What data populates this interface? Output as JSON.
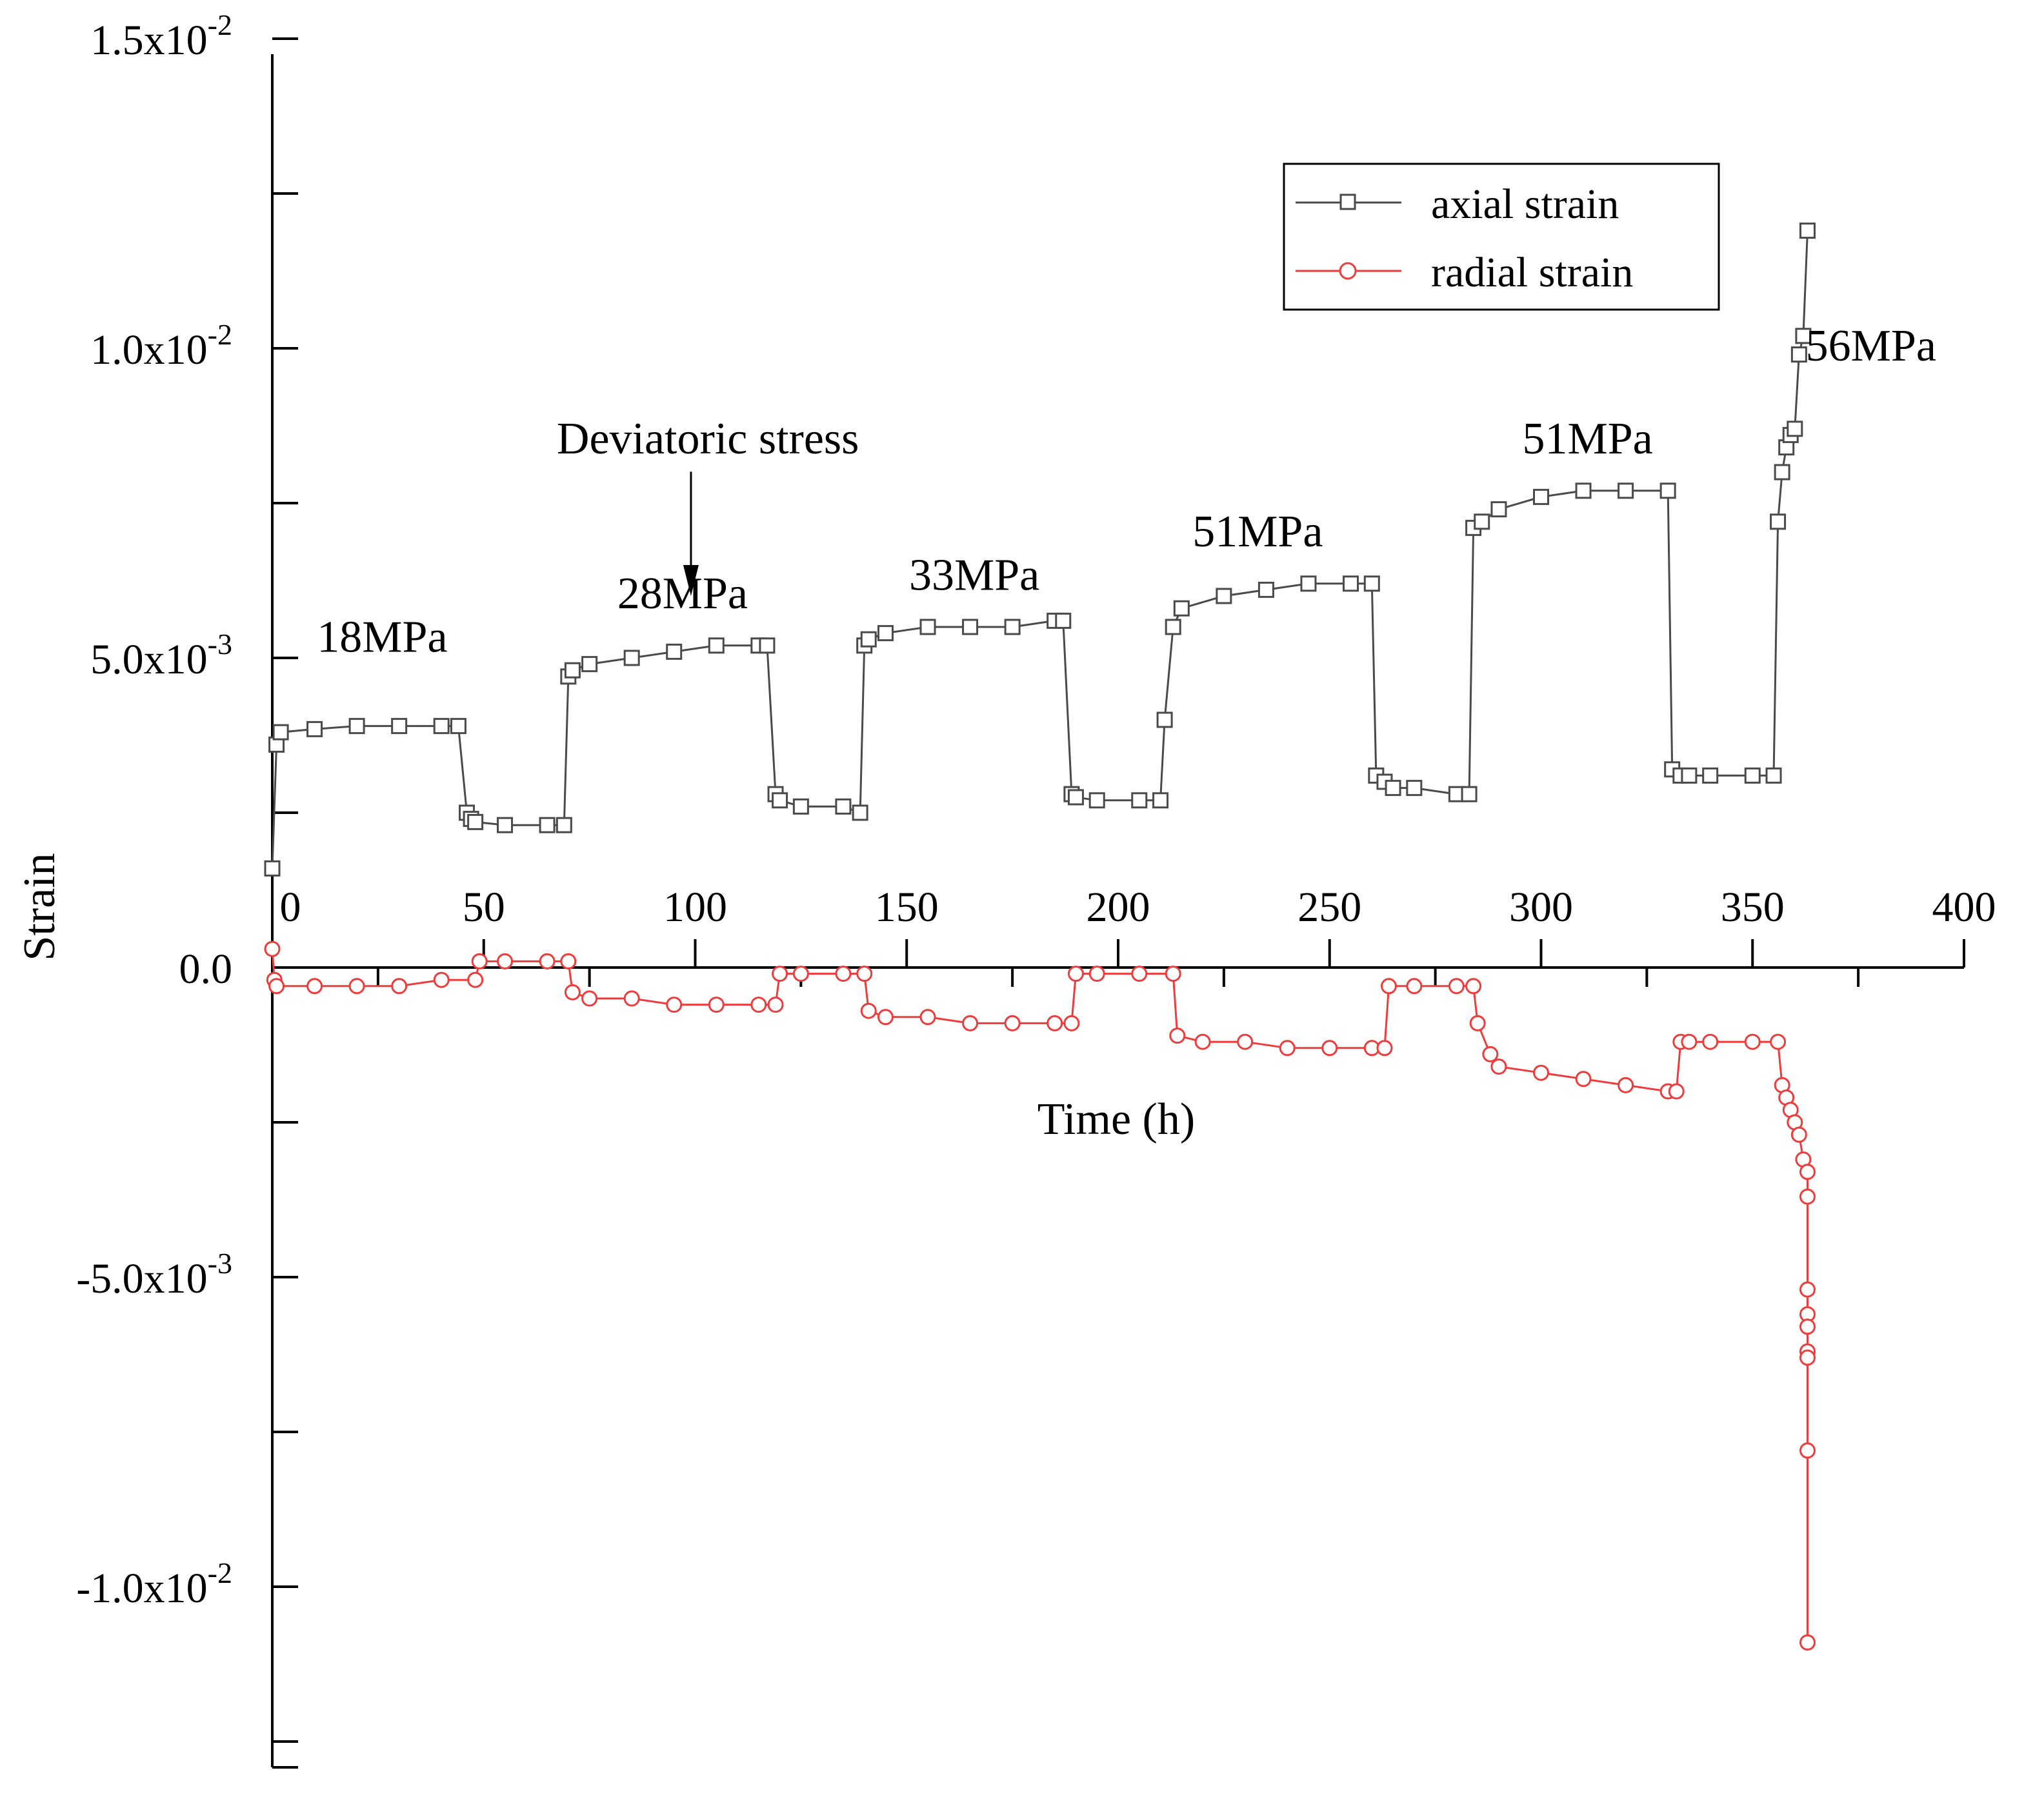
{
  "chart_data": {
    "type": "scatter",
    "title": "",
    "xlabel": "Time (h)",
    "ylabel": "Strain",
    "xlim": [
      0,
      400
    ],
    "ylim": [
      -0.0125,
      0.015
    ],
    "x_ticks": [
      "0",
      "50",
      "100",
      "150",
      "200",
      "250",
      "300",
      "350",
      "400"
    ],
    "y_ticks": [
      {
        "value": 0.015,
        "mantissa": "1.5x10",
        "exponent": "-2"
      },
      {
        "value": 0.01,
        "mantissa": "1.0x10",
        "exponent": "-2"
      },
      {
        "value": 0.005,
        "mantissa": "5.0x10",
        "exponent": "-3"
      },
      {
        "value": 0.0,
        "mantissa": "0.0",
        "exponent": ""
      },
      {
        "value": -0.005,
        "mantissa": "-5.0x10",
        "exponent": "-3"
      },
      {
        "value": -0.01,
        "mantissa": "-1.0x10",
        "exponent": "-2"
      }
    ],
    "legend_position": "top-right",
    "series": [
      {
        "name": "axial strain",
        "color": "#4a4a4a",
        "marker": "square",
        "x": [
          0,
          1,
          2,
          10,
          20,
          30,
          40,
          44,
          46,
          47,
          48,
          55,
          65,
          69,
          70,
          71,
          75,
          85,
          95,
          105,
          115,
          117,
          119,
          120,
          125,
          135,
          139,
          140,
          141,
          145,
          155,
          165,
          175,
          185,
          187,
          189,
          190,
          195,
          205,
          210,
          211,
          213,
          215,
          225,
          235,
          245,
          255,
          260,
          261,
          263,
          265,
          270,
          280,
          283,
          284,
          286,
          290,
          300,
          310,
          320,
          330,
          331,
          333,
          335,
          340,
          350,
          355,
          356,
          357,
          358,
          359,
          360,
          361,
          362,
          363
        ],
        "values": [
          0.0016,
          0.0036,
          0.0038,
          0.00385,
          0.0039,
          0.0039,
          0.0039,
          0.0039,
          0.0025,
          0.0024,
          0.00235,
          0.0023,
          0.0023,
          0.0023,
          0.0047,
          0.0048,
          0.0049,
          0.005,
          0.0051,
          0.0052,
          0.0052,
          0.0052,
          0.0028,
          0.0027,
          0.0026,
          0.0026,
          0.0025,
          0.0052,
          0.0053,
          0.0054,
          0.0055,
          0.0055,
          0.0055,
          0.0056,
          0.0056,
          0.0028,
          0.00275,
          0.0027,
          0.0027,
          0.0027,
          0.004,
          0.0055,
          0.0058,
          0.006,
          0.0061,
          0.0062,
          0.0062,
          0.0062,
          0.0031,
          0.003,
          0.0029,
          0.0029,
          0.0028,
          0.0028,
          0.0071,
          0.0072,
          0.0074,
          0.0076,
          0.0077,
          0.0077,
          0.0077,
          0.0032,
          0.0031,
          0.0031,
          0.0031,
          0.0031,
          0.0031,
          0.0072,
          0.008,
          0.0084,
          0.0086,
          0.0087,
          0.0099,
          0.0102,
          0.0119
        ]
      },
      {
        "name": "radial strain",
        "color": "#ee3b3b",
        "marker": "circle",
        "x": [
          0,
          0.5,
          1,
          10,
          20,
          30,
          40,
          48,
          49,
          55,
          65,
          70,
          71,
          75,
          85,
          95,
          105,
          115,
          119,
          120,
          125,
          135,
          140,
          141,
          145,
          155,
          165,
          175,
          185,
          189,
          190,
          195,
          205,
          213,
          214,
          220,
          230,
          240,
          250,
          260,
          263,
          264,
          270,
          280,
          284,
          285,
          288,
          290,
          300,
          310,
          320,
          330,
          332,
          333,
          335,
          340,
          350,
          356,
          357,
          358,
          359,
          360,
          361,
          362,
          363,
          363,
          363,
          363,
          363,
          363,
          363,
          363,
          363
        ],
        "values": [
          0.0003,
          -0.0002,
          -0.0003,
          -0.0003,
          -0.0003,
          -0.0003,
          -0.0002,
          -0.0002,
          0.0001,
          0.0001,
          0.0001,
          0.0001,
          -0.0004,
          -0.0005,
          -0.0005,
          -0.0006,
          -0.0006,
          -0.0006,
          -0.0006,
          -0.0001,
          -0.0001,
          -0.0001,
          -0.0001,
          -0.0007,
          -0.0008,
          -0.0008,
          -0.0009,
          -0.0009,
          -0.0009,
          -0.0009,
          -0.0001,
          -0.0001,
          -0.0001,
          -0.0001,
          -0.0011,
          -0.0012,
          -0.0012,
          -0.0013,
          -0.0013,
          -0.0013,
          -0.0013,
          -0.0003,
          -0.0003,
          -0.0003,
          -0.0003,
          -0.0009,
          -0.0014,
          -0.0016,
          -0.0017,
          -0.0018,
          -0.0019,
          -0.002,
          -0.002,
          -0.0012,
          -0.0012,
          -0.0012,
          -0.0012,
          -0.0012,
          -0.0019,
          -0.0021,
          -0.0023,
          -0.0025,
          -0.0027,
          -0.0031,
          -0.0033,
          -0.0037,
          -0.0052,
          -0.0056,
          -0.0058,
          -0.0062,
          -0.0063,
          -0.0078,
          -0.0109
        ]
      }
    ],
    "annotations": [
      {
        "text": "18MPa",
        "x": 26,
        "y": 0.0051
      },
      {
        "text": "28MPa",
        "x": 97,
        "y": 0.0058
      },
      {
        "text": "33MPa",
        "x": 166,
        "y": 0.0061
      },
      {
        "text": "51MPa",
        "x": 233,
        "y": 0.0068
      },
      {
        "text": "51MPa",
        "x": 311,
        "y": 0.0083
      },
      {
        "text": "56MPa",
        "x": 378,
        "y": 0.0098
      },
      {
        "text": "Deviatoric stress",
        "x": 103,
        "y": 0.0083,
        "arrow_to_x": 99,
        "arrow_to_y": 0.006
      }
    ]
  }
}
